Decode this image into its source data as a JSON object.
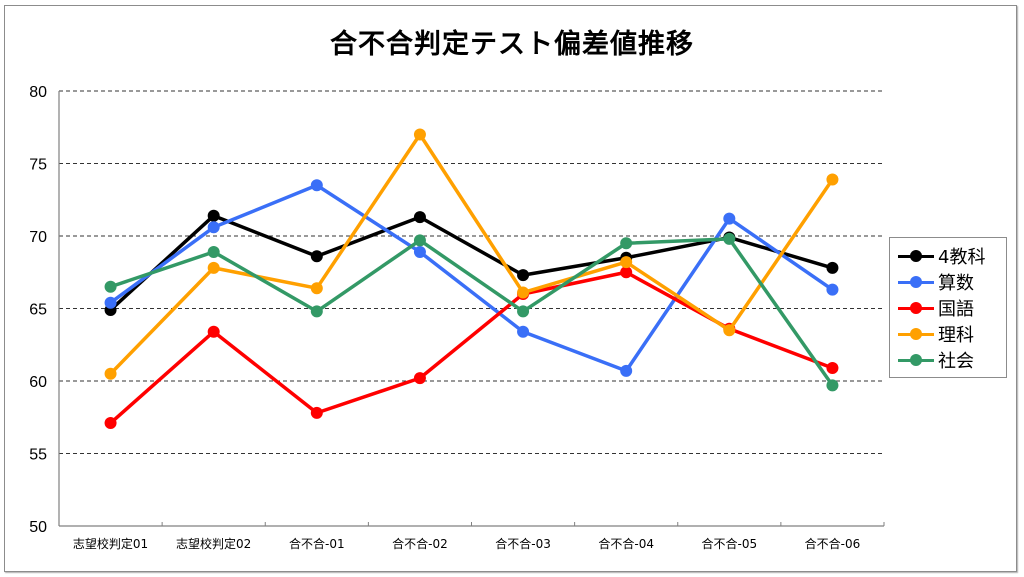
{
  "chart_data": {
    "type": "line",
    "title": "合不合判定テスト偏差値推移",
    "xlabel": "",
    "ylabel": "",
    "ylim": [
      50,
      80
    ],
    "yticks": [
      50,
      55,
      60,
      65,
      70,
      75,
      80
    ],
    "grid": true,
    "legend_position": "right",
    "categories": [
      "志望校判定01",
      "志望校判定02",
      "合不合-01",
      "合不合-02",
      "合不合-03",
      "合不合-04",
      "合不合-05",
      "合不合-06"
    ],
    "series": [
      {
        "name": "4教科",
        "color": "#000000",
        "values": [
          64.9,
          71.4,
          68.6,
          71.3,
          67.3,
          68.5,
          69.9,
          67.8
        ]
      },
      {
        "name": "算数",
        "color": "#3a6ff7",
        "values": [
          65.4,
          70.6,
          73.5,
          68.9,
          63.4,
          60.7,
          71.2,
          66.3
        ]
      },
      {
        "name": "国語",
        "color": "#ff0000",
        "values": [
          57.1,
          63.4,
          57.8,
          60.2,
          66.0,
          67.5,
          63.6,
          60.9
        ]
      },
      {
        "name": "理科",
        "color": "#ffa000",
        "values": [
          60.5,
          67.8,
          66.4,
          77.0,
          66.1,
          68.2,
          63.5,
          73.9
        ]
      },
      {
        "name": "社会",
        "color": "#339966",
        "values": [
          66.5,
          68.9,
          64.8,
          69.7,
          64.8,
          69.5,
          69.8,
          59.7
        ]
      }
    ]
  },
  "title": "合不合判定テスト偏差値推移",
  "legend": {
    "items": [
      {
        "label": "4教科",
        "color": "#000000"
      },
      {
        "label": "算数",
        "color": "#3a6ff7"
      },
      {
        "label": "国語",
        "color": "#ff0000"
      },
      {
        "label": "理科",
        "color": "#ffa000"
      },
      {
        "label": "社会",
        "color": "#339966"
      }
    ]
  }
}
